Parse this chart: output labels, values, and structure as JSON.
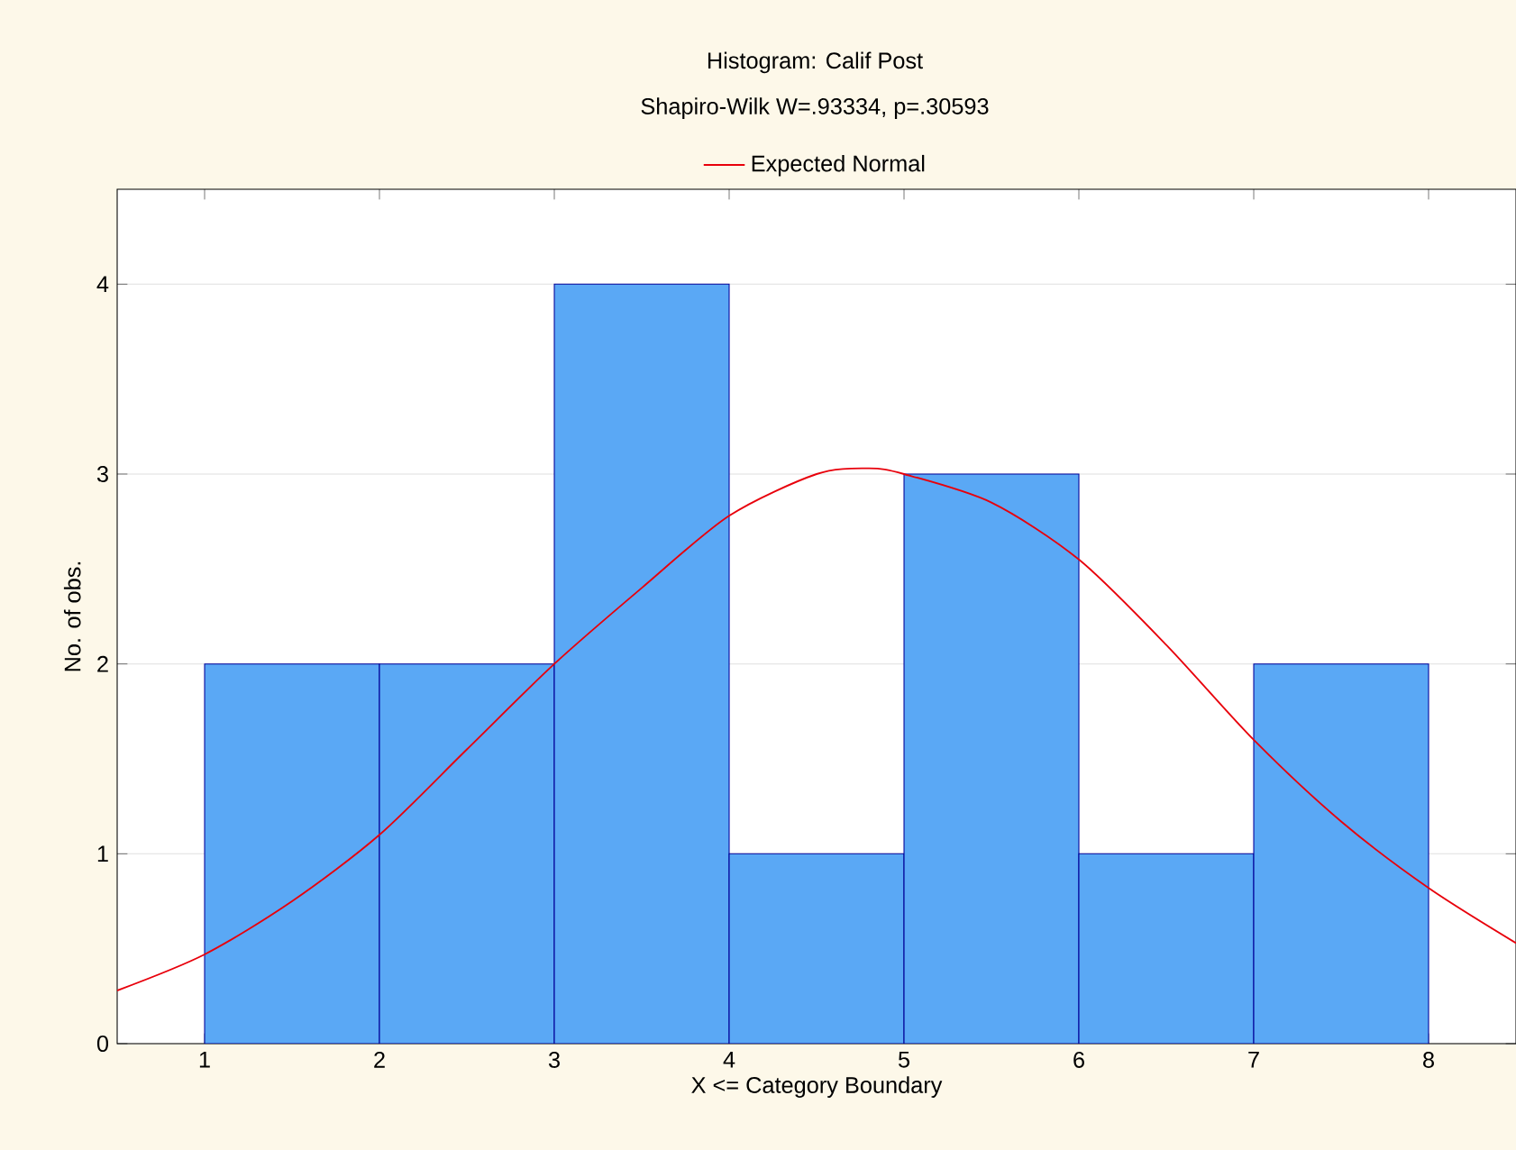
{
  "chart_data": {
    "type": "histogram",
    "title": "Histogram: Calif Post",
    "subtitle": "Shapiro-Wilk W=.93334, p=.30593",
    "xlabel": "X <= Category Boundary",
    "ylabel": "No. of obs.",
    "bins": [
      1,
      2,
      3,
      4,
      5,
      6,
      7,
      8
    ],
    "values": [
      2,
      2,
      4,
      1,
      3,
      1,
      2
    ],
    "color": "#5aa8f5",
    "series": [
      {
        "name": "Expected Normal",
        "type": "line",
        "color": "#e8000b",
        "x": [
          0.5,
          1,
          1.5,
          2,
          2.5,
          3,
          3.5,
          4,
          4.5,
          4.8,
          5,
          5.5,
          6,
          6.5,
          7,
          7.5,
          8,
          8.5
        ],
        "values": [
          0.28,
          0.47,
          0.75,
          1.1,
          1.55,
          2.0,
          2.4,
          2.78,
          3.0,
          3.03,
          3.0,
          2.85,
          2.55,
          2.1,
          1.6,
          1.17,
          0.82,
          0.53
        ]
      }
    ],
    "xlim": [
      0.5,
      8.5
    ],
    "ylim": [
      0,
      4.5
    ],
    "xticks": [
      1,
      2,
      3,
      4,
      5,
      6,
      7,
      8
    ],
    "yticks": [
      0,
      1,
      2,
      3,
      4
    ],
    "grid": "y",
    "legend": "top"
  }
}
